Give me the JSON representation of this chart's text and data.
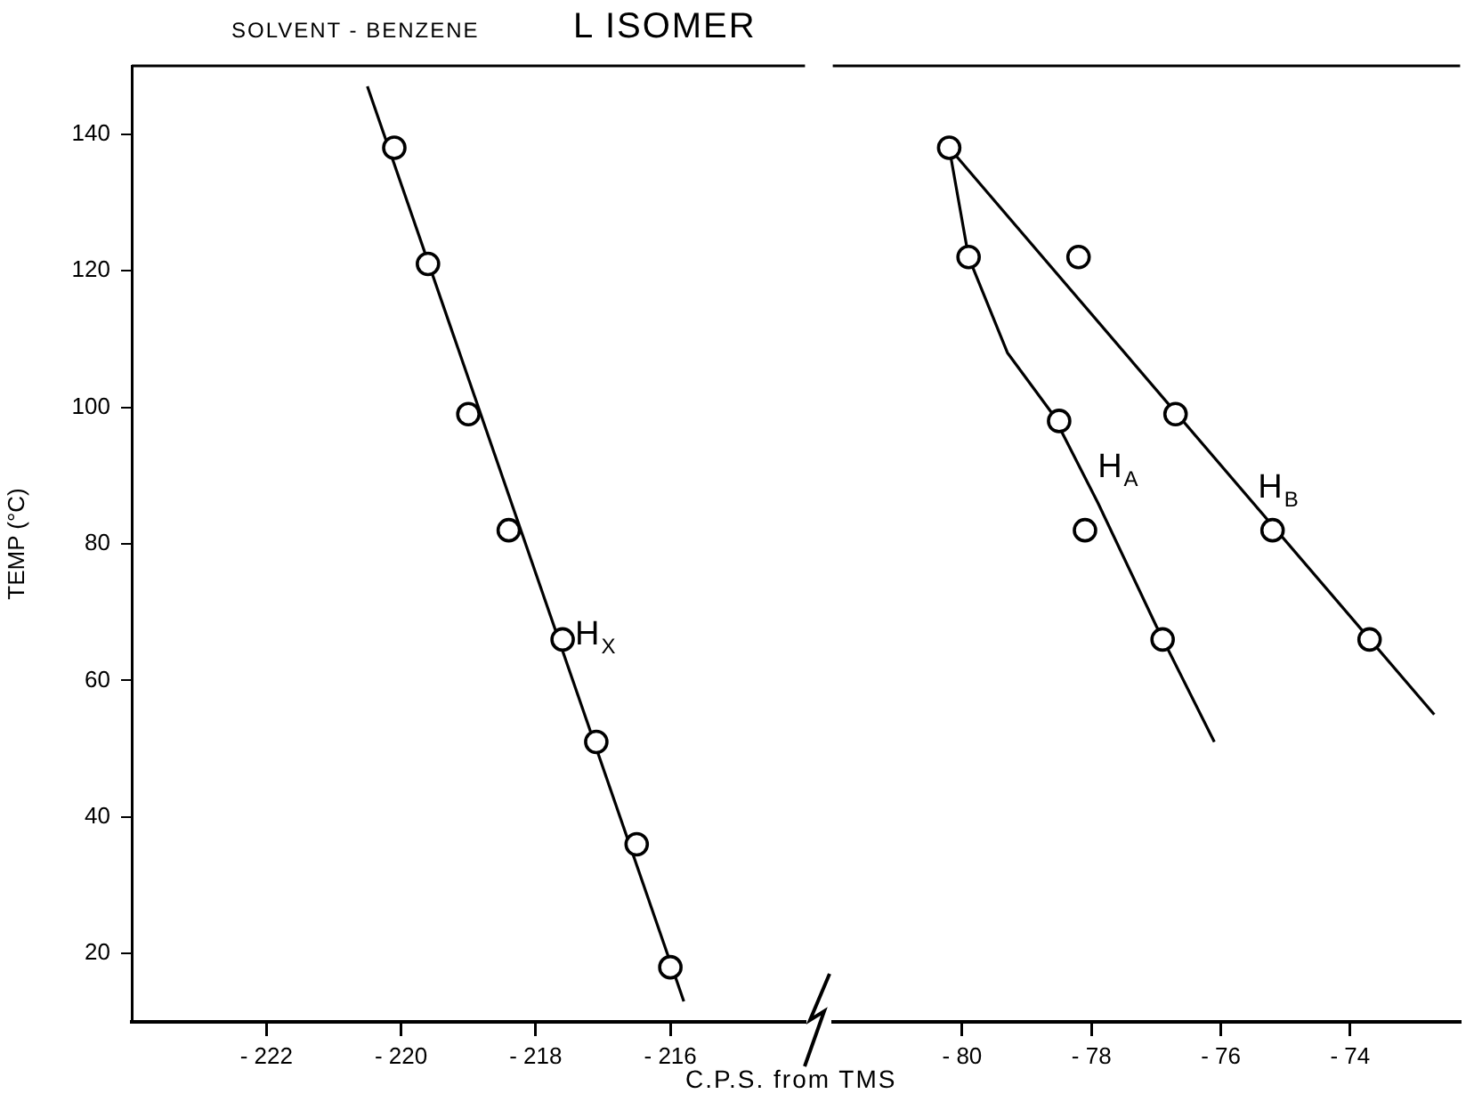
{
  "chart_data": [
    {
      "type": "scatter",
      "title": "L   ISOMER",
      "subtitle": "SOLVENT - BENZENE",
      "xlabel": "C.P.S.  from  TMS",
      "ylabel": "TEMP (°C)",
      "xlim": [
        -224,
        -214
      ],
      "xticks": [
        -222,
        -220,
        -218,
        -216
      ],
      "ylim": [
        10,
        150
      ],
      "yticks": [
        20,
        40,
        60,
        80,
        100,
        120,
        140
      ],
      "marker": "circle",
      "series": [
        {
          "color": "#000000",
          "x": [
            -220.1,
            -219.6,
            -219.0,
            -218.4,
            -217.6,
            -217.1,
            -216.5,
            -216.0
          ],
          "values": [
            138,
            121,
            99,
            82,
            66,
            51,
            36,
            18
          ]
        },
        {
          "type": "line",
          "name": "H$_{X}$",
          "marker": "none",
          "line_style": "solid",
          "color": "#000000",
          "x": [
            -220.5,
            -215.8
          ],
          "values": [
            147,
            13
          ]
        }
      ]
    },
    {
      "type": "scatter",
      "xlim": [
        -82,
        -72.3
      ],
      "xticks": [
        -80,
        -78,
        -76,
        -74
      ],
      "ylim": [
        10,
        150
      ],
      "yticks": [
        20,
        40,
        60,
        80,
        100,
        120,
        140
      ],
      "tick_labels": "x",
      "marker": "circle",
      "series": [
        {
          "color": "#000000",
          "x": [
            -80.2,
            -79.9,
            -78.5,
            -78.1,
            -76.9
          ],
          "values": [
            138,
            122,
            98,
            82,
            66
          ]
        },
        {
          "color": "#000000",
          "x": [
            -78.2,
            -76.7,
            -75.2,
            -73.7
          ],
          "values": [
            122,
            99,
            82,
            66
          ]
        },
        {
          "type": "line",
          "name": "H$_{A}$",
          "marker": "none",
          "line_style": "solid",
          "color": "#000000",
          "x": [
            -80.2,
            -79.9,
            -79.3,
            -78.6,
            -77.9,
            -77.0,
            -76.1
          ],
          "values": [
            138,
            122,
            108,
            99,
            86,
            68,
            51
          ]
        },
        {
          "type": "line",
          "name": "H$_{B}$",
          "marker": "none",
          "line_style": "solid",
          "color": "#000000",
          "x": [
            -80.2,
            -72.7
          ],
          "values": [
            138,
            55
          ]
        }
      ]
    }
  ]
}
